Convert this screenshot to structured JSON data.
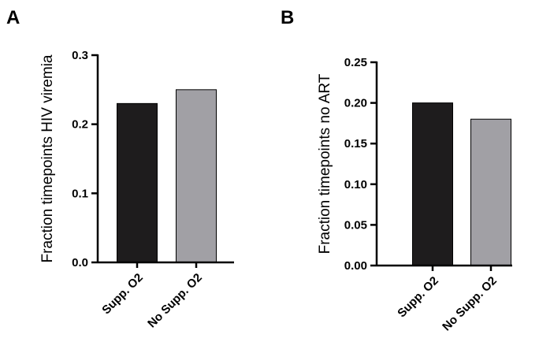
{
  "colors": {
    "bar_dark": "#1e1c1d",
    "bar_gray": "#a1a0a5"
  },
  "chart_data": [
    {
      "type": "bar",
      "panel": "A",
      "title": "",
      "xlabel": "",
      "ylabel": "Fraction timepoints HIV viremia",
      "categories": [
        "Supp. O2",
        "No Supp. O2"
      ],
      "values": [
        0.23,
        0.25
      ],
      "ylim": [
        0,
        0.3
      ],
      "yticks": [
        0.0,
        0.1,
        0.2,
        0.3
      ],
      "ytick_labels": [
        "0.0",
        "0.1",
        "0.2",
        "0.3"
      ],
      "grid": false,
      "legend": "none"
    },
    {
      "type": "bar",
      "panel": "B",
      "title": "",
      "xlabel": "",
      "ylabel": "Fraction timepoints no ART",
      "categories": [
        "Supp. O2",
        "No Supp. O2"
      ],
      "values": [
        0.2,
        0.18
      ],
      "ylim": [
        0,
        0.25
      ],
      "yticks": [
        0.0,
        0.05,
        0.1,
        0.15,
        0.2,
        0.25
      ],
      "ytick_labels": [
        "0.00",
        "0.05",
        "0.10",
        "0.15",
        "0.20",
        "0.25"
      ],
      "grid": false,
      "legend": "none"
    }
  ]
}
